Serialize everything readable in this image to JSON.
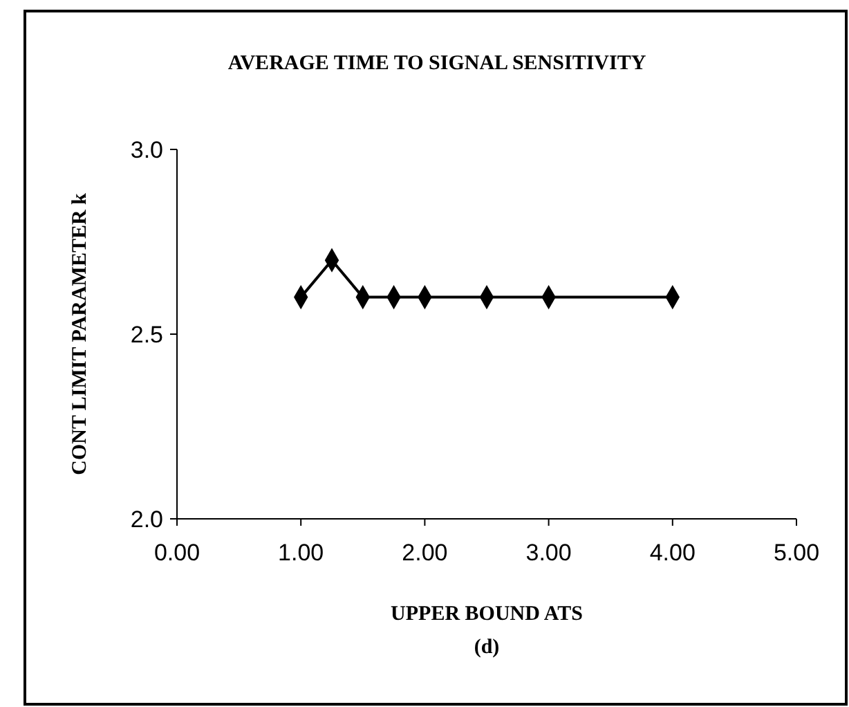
{
  "chart_data": {
    "type": "line",
    "title": "AVERAGE TIME TO  SIGNAL SENSITIVITY",
    "xlabel": "UPPER BOUND ATS",
    "ylabel": "CONT LIMIT PARAMETER k",
    "annotations": [
      "(d)"
    ],
    "x": [
      1.0,
      1.25,
      1.5,
      1.75,
      2.0,
      2.5,
      3.0,
      4.0
    ],
    "series": [
      {
        "color": "#000000",
        "values": [
          2.6,
          2.7,
          2.6,
          2.6,
          2.6,
          2.6,
          2.6,
          2.6
        ]
      }
    ],
    "xlim": [
      0,
      5
    ],
    "xticks": [
      {
        "value": 0,
        "label": "0.00"
      },
      {
        "value": 1,
        "label": "1.00"
      },
      {
        "value": 2,
        "label": "2.00"
      },
      {
        "value": 3,
        "label": "3.00"
      },
      {
        "value": 4,
        "label": "4.00"
      },
      {
        "value": 5,
        "label": "5.00"
      }
    ],
    "ylim": [
      2,
      3
    ],
    "yticks": [
      {
        "value": 2,
        "label": "2.0"
      },
      {
        "value": 2.5,
        "label": "2.5"
      },
      {
        "value": 3,
        "label": "3.0"
      }
    ],
    "marker": "diamond",
    "line_style": "solid",
    "grid": false
  }
}
